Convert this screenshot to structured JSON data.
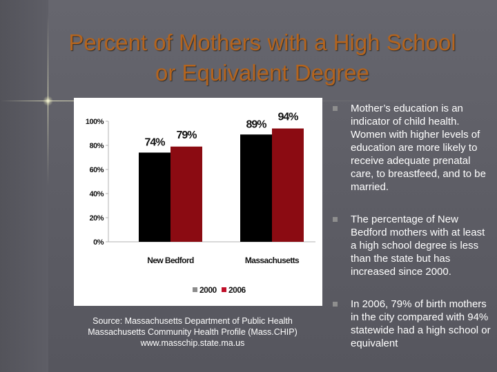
{
  "slide": {
    "title": "Percent of Mothers with a High School or Equivalent Degree",
    "source_lines": [
      "Source:  Massachusetts Department of Public Health",
      "Massachusetts Community Health Profile (Mass.CHIP)",
      "www.masschip.state.ma.us"
    ],
    "bullets": [
      "Mother’s education is an indicator of child health. Women with higher levels of education are more likely to receive adequate prenatal care, to breastfeed, and to be married.",
      "The percentage of New Bedford mothers with at least a high school degree is less than the state but has increased since 2000.",
      "In 2006, 79% of birth mothers in the city compared with 94% statewide had a high school or equivalent"
    ]
  },
  "colors": {
    "series_2000": "#000000",
    "series_2006": "#8b0b12",
    "legend_2000": "#8c8c8c",
    "legend_2006": "#c0102a",
    "title": "#b4641e"
  },
  "chart_data": {
    "type": "bar",
    "categories": [
      "New Bedford",
      "Massachusetts"
    ],
    "series": [
      {
        "name": "2000",
        "values": [
          74,
          89
        ],
        "labels": [
          "74%",
          "89%"
        ]
      },
      {
        "name": "2006",
        "values": [
          79,
          94
        ],
        "labels": [
          "79%",
          "94%"
        ]
      }
    ],
    "yticks": [
      0,
      20,
      40,
      60,
      80,
      100
    ],
    "ytick_labels": [
      "0%",
      "20%",
      "40%",
      "60%",
      "80%",
      "100%"
    ],
    "ylim": [
      0,
      100
    ],
    "legend": "bottom",
    "grid": false
  }
}
